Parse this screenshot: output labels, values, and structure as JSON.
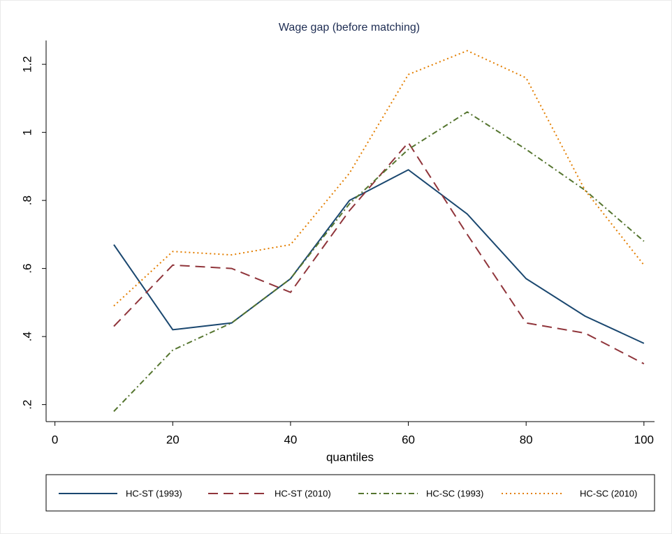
{
  "chart_data": {
    "type": "line",
    "title": "Wage gap (before matching)",
    "x_label": "quantiles",
    "x": [
      10,
      20,
      30,
      40,
      50,
      60,
      70,
      80,
      90,
      100
    ],
    "series": [
      {
        "name": "HC-ST (1993)",
        "color": "#1a476f",
        "style": "solid",
        "values": [
          0.67,
          0.42,
          0.44,
          0.57,
          0.8,
          0.89,
          0.76,
          0.57,
          0.46,
          0.38
        ]
      },
      {
        "name": "HC-ST (2010)",
        "color": "#90353b",
        "style": "dashed",
        "values": [
          0.43,
          0.61,
          0.6,
          0.53,
          0.77,
          0.97,
          0.7,
          0.44,
          0.41,
          0.32
        ]
      },
      {
        "name": "HC-SC (1993)",
        "color": "#55752f",
        "style": "dashdot",
        "values": [
          0.18,
          0.36,
          0.44,
          0.57,
          0.79,
          0.95,
          1.06,
          0.95,
          0.83,
          0.68
        ]
      },
      {
        "name": "HC-SC (2010)",
        "color": "#e37e00",
        "style": "dotted",
        "values": [
          0.49,
          0.65,
          0.64,
          0.67,
          0.88,
          1.17,
          1.24,
          1.16,
          0.83,
          0.61
        ]
      }
    ],
    "xlim": [
      -1.5,
      101.8
    ],
    "xticks": [
      0,
      20,
      40,
      60,
      80,
      100
    ],
    "ylim": [
      0.15,
      1.27
    ],
    "yticks": [
      {
        "value": 0.2,
        "label": ".2"
      },
      {
        "value": 0.4,
        "label": ".4"
      },
      {
        "value": 0.6,
        "label": ".6"
      },
      {
        "value": 0.8,
        "label": ".8"
      },
      1,
      1.2
    ],
    "grid": false,
    "legend": "bottom"
  }
}
